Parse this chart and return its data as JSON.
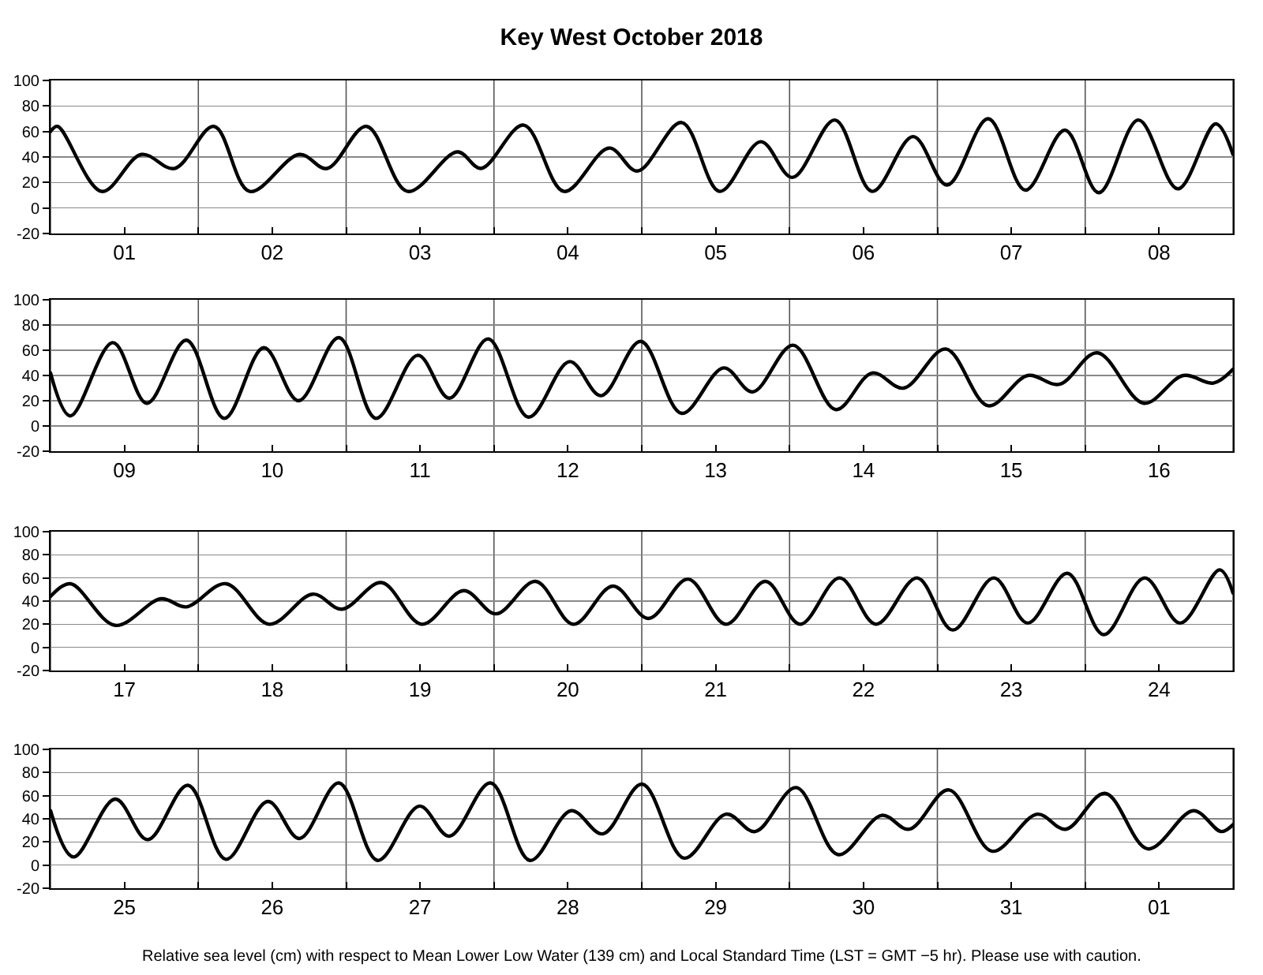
{
  "chart_data": [
    {
      "type": "line",
      "title": "Key West October 2018",
      "grid": true,
      "marker": "none",
      "line_style": "solid",
      "xlim": [
        1,
        9
      ],
      "ylim": [
        -20,
        100
      ],
      "yticks": [
        -20,
        0,
        20,
        40,
        60,
        80,
        100
      ],
      "xticks": [
        {
          "value": 1,
          "label": null
        },
        {
          "value": 1.5,
          "label": "01"
        },
        {
          "value": 2,
          "label": null
        },
        {
          "value": 2.5,
          "label": "02"
        },
        {
          "value": 3,
          "label": null
        },
        {
          "value": 3.5,
          "label": "03"
        },
        {
          "value": 4,
          "label": null
        },
        {
          "value": 4.5,
          "label": "04"
        },
        {
          "value": 5,
          "label": null
        },
        {
          "value": 5.5,
          "label": "05"
        },
        {
          "value": 6,
          "label": null
        },
        {
          "value": 6.5,
          "label": "06"
        },
        {
          "value": 7,
          "label": null
        },
        {
          "value": 7.5,
          "label": "07"
        },
        {
          "value": 8,
          "label": null
        },
        {
          "value": 8.5,
          "label": "08"
        },
        {
          "value": 9,
          "label": null
        }
      ],
      "series": [
        {
          "color": "#000000",
          "x": [
            1,
            1.048,
            1.347,
            1.615,
            1.839,
            2.106,
            2.347,
            2.684,
            2.871,
            3.138,
            3.416,
            3.753,
            3.913,
            4.201,
            4.474,
            4.779,
            4.971,
            5.27,
            5.527,
            5.805,
            6.019,
            6.307,
            6.559,
            6.836,
            7.066,
            7.344,
            7.595,
            7.863,
            8.092,
            8.36,
            8.627,
            8.883,
            9
          ],
          "values": [
            60,
            64,
            13,
            42,
            31,
            64,
            13,
            42,
            31,
            64,
            13,
            44,
            31,
            65,
            13,
            47,
            29,
            67,
            13,
            52,
            24,
            69,
            13,
            56,
            18,
            70,
            14,
            61,
            12,
            69,
            15,
            66,
            42
          ]
        }
      ]
    },
    {
      "type": "line",
      "grid": true,
      "marker": "none",
      "line_style": "solid",
      "xlim": [
        9,
        17
      ],
      "ylim": [
        -20,
        100
      ],
      "yticks": [
        -20,
        0,
        20,
        40,
        60,
        80,
        100
      ],
      "xticks": [
        {
          "value": 9,
          "label": null
        },
        {
          "value": 9.5,
          "label": "09"
        },
        {
          "value": 10,
          "label": null
        },
        {
          "value": 10.5,
          "label": "10"
        },
        {
          "value": 11,
          "label": null
        },
        {
          "value": 11.5,
          "label": "11"
        },
        {
          "value": 12,
          "label": null
        },
        {
          "value": 12.5,
          "label": "12"
        },
        {
          "value": 13,
          "label": null
        },
        {
          "value": 13.5,
          "label": "13"
        },
        {
          "value": 14,
          "label": null
        },
        {
          "value": 14.5,
          "label": "14"
        },
        {
          "value": 15,
          "label": null
        },
        {
          "value": 15.5,
          "label": "15"
        },
        {
          "value": 16,
          "label": null
        },
        {
          "value": 16.5,
          "label": "16"
        },
        {
          "value": 17,
          "label": null
        }
      ],
      "series": [
        {
          "color": "#000000",
          "x": [
            9,
            9.134,
            9.422,
            9.652,
            9.919,
            10.176,
            10.443,
            10.678,
            10.951,
            11.202,
            11.485,
            11.699,
            11.961,
            12.234,
            12.512,
            12.725,
            12.993,
            13.27,
            13.554,
            13.751,
            14.024,
            14.313,
            14.559,
            14.772,
            15.056,
            15.344,
            15.611,
            15.825,
            16.082,
            16.397,
            16.664,
            16.867,
            17
          ],
          "values": [
            42,
            8,
            66,
            18,
            68,
            6,
            62,
            20,
            70,
            6,
            56,
            22,
            69,
            7,
            51,
            24,
            67,
            10,
            46,
            27,
            64,
            13,
            42,
            30,
            61,
            16,
            40,
            33,
            58,
            18,
            40,
            34,
            45
          ]
        }
      ]
    },
    {
      "type": "line",
      "grid": true,
      "marker": "none",
      "line_style": "solid",
      "xlim": [
        17,
        25
      ],
      "ylim": [
        -20,
        100
      ],
      "yticks": [
        -20,
        0,
        20,
        40,
        60,
        80,
        100
      ],
      "xticks": [
        {
          "value": 17,
          "label": null
        },
        {
          "value": 17.5,
          "label": "17"
        },
        {
          "value": 18,
          "label": null
        },
        {
          "value": 18.5,
          "label": "18"
        },
        {
          "value": 19,
          "label": null
        },
        {
          "value": 19.5,
          "label": "19"
        },
        {
          "value": 20,
          "label": null
        },
        {
          "value": 20.5,
          "label": "20"
        },
        {
          "value": 21,
          "label": null
        },
        {
          "value": 21.5,
          "label": "21"
        },
        {
          "value": 22,
          "label": null
        },
        {
          "value": 22.5,
          "label": "22"
        },
        {
          "value": 23,
          "label": null
        },
        {
          "value": 23.5,
          "label": "23"
        },
        {
          "value": 24,
          "label": null
        },
        {
          "value": 24.5,
          "label": "24"
        },
        {
          "value": 25,
          "label": null
        }
      ],
      "series": [
        {
          "color": "#000000",
          "x": [
            17,
            17.134,
            17.438,
            17.748,
            17.919,
            18.187,
            18.48,
            18.774,
            18.972,
            19.239,
            19.512,
            19.795,
            20.014,
            20.282,
            20.538,
            20.805,
            21.046,
            21.313,
            21.57,
            21.837,
            22.072,
            22.339,
            22.585,
            22.863,
            23.104,
            23.382,
            23.611,
            23.879,
            24.125,
            24.402,
            24.643,
            24.91,
            25
          ],
          "values": [
            44,
            55,
            19,
            42,
            35,
            55,
            20,
            46,
            33,
            56,
            20,
            49,
            29,
            57,
            20,
            53,
            25,
            59,
            20,
            57,
            20,
            60,
            20,
            60,
            15,
            60,
            21,
            64,
            11,
            60,
            21,
            67,
            47
          ]
        }
      ]
    },
    {
      "type": "line",
      "grid": true,
      "marker": "none",
      "line_style": "solid",
      "xlim": [
        "2018-10-25T00:00",
        "2018-11-02T00:00"
      ],
      "ylim": [
        -20,
        100
      ],
      "yticks": [
        -20,
        0,
        20,
        40,
        60,
        80,
        100
      ],
      "xticks": [
        {
          "value": "2018-10-25T00:00",
          "label": null
        },
        {
          "value": "2018-10-25T12:00",
          "label": "25"
        },
        {
          "value": "2018-10-26T00:00",
          "label": null
        },
        {
          "value": "2018-10-26T12:00",
          "label": "26"
        },
        {
          "value": "2018-10-27T00:00",
          "label": null
        },
        {
          "value": "2018-10-27T12:00",
          "label": "27"
        },
        {
          "value": "2018-10-28T00:00",
          "label": null
        },
        {
          "value": "2018-10-28T12:00",
          "label": "28"
        },
        {
          "value": "2018-10-29T00:00",
          "label": null
        },
        {
          "value": "2018-10-29T12:00",
          "label": "29"
        },
        {
          "value": "2018-10-30T00:00",
          "label": null
        },
        {
          "value": "2018-10-30T12:00",
          "label": "30"
        },
        {
          "value": "2018-10-31T00:00",
          "label": null
        },
        {
          "value": "2018-10-31T12:00",
          "label": "31"
        },
        {
          "value": "2018-11-01T00:00",
          "label": null
        },
        {
          "value": "2018-11-01T12:00",
          "label": "01"
        },
        {
          "value": "2018-11-02T00:00",
          "label": null
        }
      ],
      "annotations": [
        "Relative sea level (cm) with respect to Mean Lower Low Water (139 cm) and Local Standard Time (LST = GMT −5 hr). Please use with caution."
      ],
      "series": [
        {
          "color": "#000000",
          "x": [
            "2018-10-25T00:00",
            "2018-10-25T03:43",
            "2018-10-25T10:31",
            "2018-10-25T15:46",
            "2018-10-25T22:19",
            "2018-10-26T04:29",
            "2018-10-26T11:17",
            "2018-10-26T16:25",
            "2018-10-26T22:49",
            "2018-10-27T05:07",
            "2018-10-27T11:54",
            "2018-10-27T16:46",
            "2018-10-27T23:27",
            "2018-10-28T05:51",
            "2018-10-28T12:32",
            "2018-10-28T17:40",
            "2018-10-29T00:04",
            "2018-10-29T06:53",
            "2018-10-29T13:41",
            "2018-10-29T18:25",
            "2018-10-30T01:05",
            "2018-10-30T07:54",
            "2018-10-30T14:57",
            "2018-10-30T19:26",
            "2018-10-31T01:51",
            "2018-10-31T08:54",
            "2018-10-31T16:12",
            "2018-10-31T20:50",
            "2018-11-01T03:14",
            "2018-11-01T10:11",
            "2018-11-01T17:35",
            "2018-11-01T22:05",
            "2018-11-02T00:00"
          ],
          "values": [
            47,
            7,
            57,
            22,
            69,
            5,
            55,
            23,
            71,
            4,
            51,
            25,
            71,
            4,
            47,
            27,
            70,
            6,
            44,
            29,
            67,
            9,
            43,
            31,
            65,
            12,
            44,
            31,
            62,
            14,
            47,
            29,
            35
          ]
        }
      ]
    }
  ]
}
